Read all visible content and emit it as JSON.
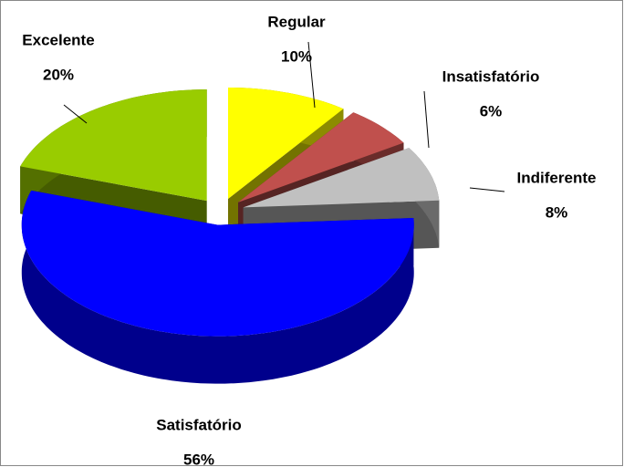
{
  "chart_data": {
    "type": "pie3d",
    "categories": [
      "Regular",
      "Insatisfatório",
      "Indiferente",
      "Satisfatório",
      "Excelente"
    ],
    "values": [
      10,
      6,
      8,
      56,
      20
    ],
    "value_labels": [
      "10%",
      "6%",
      "8%",
      "56%",
      "20%"
    ],
    "colors": [
      "#ffff00",
      "#c0504d",
      "#c0c0c0",
      "#0000ff",
      "#99cc00"
    ]
  }
}
